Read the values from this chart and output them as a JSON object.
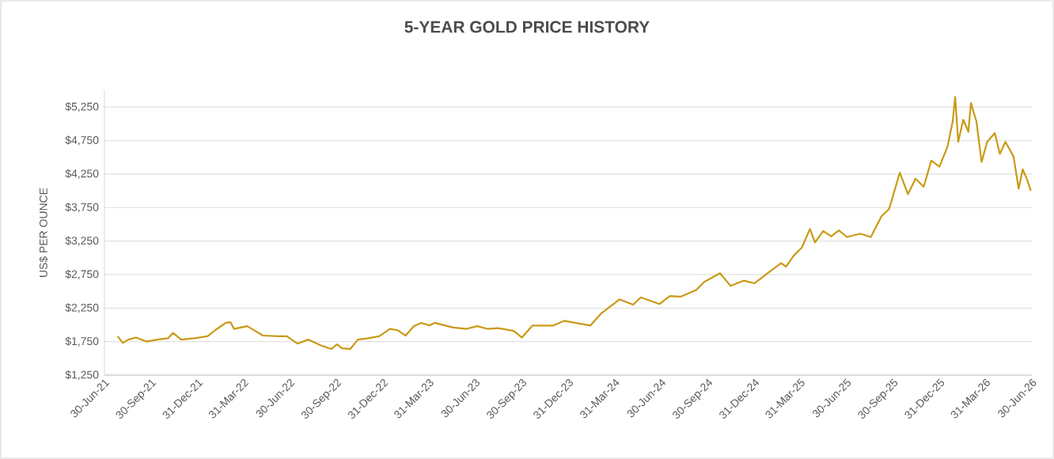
{
  "chart_data": {
    "type": "line",
    "title": "5-YEAR GOLD PRICE HISTORY",
    "ylabel": "US$ PER OUNCE",
    "x": [
      "2021-07-26",
      "2021-08-05",
      "2021-08-16",
      "2021-08-31",
      "2021-09-21",
      "2021-10-12",
      "2021-11-02",
      "2021-11-12",
      "2021-11-28",
      "2021-12-24",
      "2022-01-19",
      "2022-02-03",
      "2022-02-24",
      "2022-03-05",
      "2022-03-12",
      "2022-04-07",
      "2022-05-08",
      "2022-06-08",
      "2022-06-24",
      "2022-07-15",
      "2022-08-05",
      "2022-08-31",
      "2022-09-20",
      "2022-10-01",
      "2022-10-11",
      "2022-10-27",
      "2022-11-11",
      "2022-12-02",
      "2022-12-23",
      "2023-01-13",
      "2023-01-28",
      "2023-02-13",
      "2023-03-01",
      "2023-03-16",
      "2023-04-01",
      "2023-04-11",
      "2023-05-02",
      "2023-05-18",
      "2023-06-13",
      "2023-07-04",
      "2023-07-24",
      "2023-08-14",
      "2023-09-14",
      "2023-09-30",
      "2023-10-16",
      "2023-10-21",
      "2023-12-01",
      "2023-12-22",
      "2024-02-12",
      "2024-03-04",
      "2024-04-09",
      "2024-05-06",
      "2024-05-21",
      "2024-06-27",
      "2024-07-17",
      "2024-08-07",
      "2024-09-07",
      "2024-09-23",
      "2024-10-24",
      "2024-11-14",
      "2024-12-10",
      "2024-12-31",
      "2025-01-26",
      "2025-02-21",
      "2025-03-03",
      "2025-03-19",
      "2025-04-03",
      "2025-04-19",
      "2025-04-29",
      "2025-05-15",
      "2025-05-31",
      "2025-06-15",
      "2025-07-01",
      "2025-07-27",
      "2025-08-17",
      "2025-09-07",
      "2025-09-22",
      "2025-10-13",
      "2025-10-29",
      "2025-11-13",
      "2025-11-29",
      "2025-12-14",
      "2025-12-30",
      "2026-01-15",
      "2026-01-25",
      "2026-01-30",
      "2026-02-05",
      "2026-02-15",
      "2026-02-25",
      "2026-03-02",
      "2026-03-13",
      "2026-03-23",
      "2026-04-03",
      "2026-04-18",
      "2026-04-28",
      "2026-05-09",
      "2026-05-25",
      "2026-06-04",
      "2026-06-12",
      "2026-06-20",
      "2026-06-28"
    ],
    "series": [
      {
        "color": "#c99a16",
        "values": [
          1830,
          1730,
          1780,
          1810,
          1750,
          1780,
          1800,
          1880,
          1780,
          1800,
          1830,
          1920,
          2030,
          2040,
          1940,
          1980,
          1840,
          1830,
          1830,
          1720,
          1780,
          1690,
          1640,
          1710,
          1650,
          1640,
          1780,
          1800,
          1830,
          1940,
          1920,
          1840,
          1980,
          2030,
          1990,
          2030,
          1990,
          1960,
          1940,
          1980,
          1940,
          1950,
          1910,
          1810,
          1950,
          1990,
          1990,
          2060,
          1990,
          2170,
          2380,
          2300,
          2410,
          2310,
          2430,
          2420,
          2520,
          2640,
          2770,
          2580,
          2660,
          2620,
          2770,
          2920,
          2870,
          3040,
          3150,
          3430,
          3230,
          3400,
          3320,
          3410,
          3310,
          3360,
          3310,
          3620,
          3730,
          4270,
          3950,
          4180,
          4060,
          4450,
          4360,
          4660,
          5030,
          5400,
          4730,
          5060,
          4880,
          5310,
          5030,
          4430,
          4730,
          4860,
          4550,
          4730,
          4510,
          4030,
          4320,
          4180,
          4000
        ]
      }
    ],
    "xlim": [
      "2021-06-30",
      "2026-06-30"
    ],
    "xticks": [
      {
        "value": "2021-06-30",
        "label": "30-Jun-21"
      },
      {
        "value": "2021-09-30",
        "label": "30-Sep-21"
      },
      {
        "value": "2021-12-31",
        "label": "31-Dec-21"
      },
      {
        "value": "2022-03-31",
        "label": "31-Mar-22"
      },
      {
        "value": "2022-06-30",
        "label": "30-Jun-22"
      },
      {
        "value": "2022-09-30",
        "label": "30-Sep-22"
      },
      {
        "value": "2022-12-31",
        "label": "31-Dec-22"
      },
      {
        "value": "2023-03-31",
        "label": "31-Mar-23"
      },
      {
        "value": "2023-06-30",
        "label": "30-Jun-23"
      },
      {
        "value": "2023-09-30",
        "label": "30-Sep-23"
      },
      {
        "value": "2023-12-31",
        "label": "31-Dec-23"
      },
      {
        "value": "2024-03-31",
        "label": "31-Mar-24"
      },
      {
        "value": "2024-06-30",
        "label": "30-Jun-24"
      },
      {
        "value": "2024-09-30",
        "label": "30-Sep-24"
      },
      {
        "value": "2024-12-31",
        "label": "31-Dec-24"
      },
      {
        "value": "2025-03-31",
        "label": "31-Mar-25"
      },
      {
        "value": "2025-06-30",
        "label": "30-Jun-25"
      },
      {
        "value": "2025-09-30",
        "label": "30-Sep-25"
      },
      {
        "value": "2025-12-31",
        "label": "31-Dec-25"
      },
      {
        "value": "2026-03-31",
        "label": "31-Mar-26"
      },
      {
        "value": "2026-06-30",
        "label": "30-Jun-26"
      }
    ],
    "ylim": [
      1250,
      5500
    ],
    "yticks": [
      {
        "value": 1250,
        "label": "$1,250"
      },
      {
        "value": 1750,
        "label": "$1,750"
      },
      {
        "value": 2250,
        "label": "$2,250"
      },
      {
        "value": 2750,
        "label": "$2,750"
      },
      {
        "value": 3250,
        "label": "$3,250"
      },
      {
        "value": 3750,
        "label": "$3,750"
      },
      {
        "value": 4250,
        "label": "$4,250"
      },
      {
        "value": 4750,
        "label": "$4,750"
      },
      {
        "value": 5250,
        "label": "$5,250"
      }
    ],
    "grid": "y"
  }
}
